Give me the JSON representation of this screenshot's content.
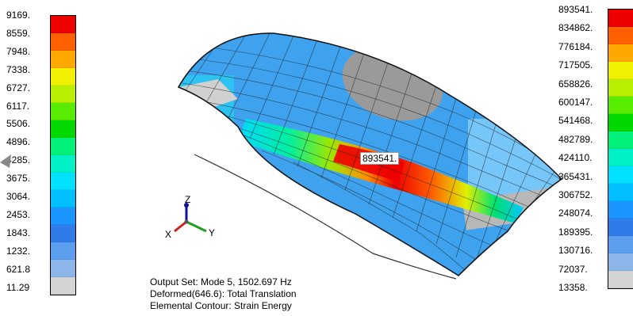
{
  "left_legend": {
    "labels": [
      "9169.",
      "8559.",
      "7948.",
      "7338.",
      "6727.",
      "6117.",
      "5506.",
      "4896.",
      "4285.",
      "3675.",
      "3064.",
      "2453.",
      "1843.",
      "1232.",
      "621.8",
      "11.29"
    ],
    "colors": [
      "#ee0000",
      "#ff6000",
      "#ffa800",
      "#f0f000",
      "#b8f000",
      "#58ec00",
      "#00d800",
      "#00f07a",
      "#00f0c8",
      "#00e0ff",
      "#00beff",
      "#1a95ff",
      "#2f7be8",
      "#5c9fee",
      "#8cb5ea",
      "#d4d4d4"
    ]
  },
  "right_legend": {
    "labels": [
      "893541.",
      "834862.",
      "776184.",
      "717505.",
      "658826.",
      "600147.",
      "541468.",
      "482789.",
      "424110.",
      "365431.",
      "306752.",
      "248074.",
      "189395.",
      "130716.",
      "72037.",
      "13358."
    ],
    "colors": [
      "#ee0000",
      "#ff6000",
      "#ffa800",
      "#f0f000",
      "#b8f000",
      "#58ec00",
      "#00d800",
      "#00f07a",
      "#00f0c8",
      "#00e0ff",
      "#00beff",
      "#1a95ff",
      "#2f7be8",
      "#5c9fee",
      "#8cb5ea",
      "#d4d4d4"
    ]
  },
  "peak_label": "893541.",
  "axes": {
    "x": "X",
    "y": "Y",
    "z": "Z"
  },
  "info": {
    "line1": "Output Set: Mode 5, 1502.697 Hz",
    "line2": "Deformed(646.6): Total Translation",
    "line3": "Elemental Contour: Strain Energy"
  }
}
